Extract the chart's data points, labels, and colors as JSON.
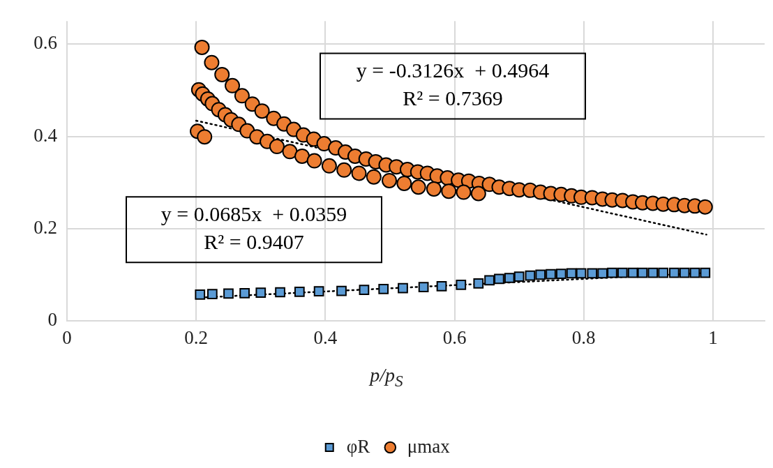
{
  "chart_data": {
    "type": "scatter",
    "xlabel": "p/p$_{S}$",
    "xlim": [
      0,
      1.08
    ],
    "xticks": [
      0,
      0.2,
      0.4,
      0.6,
      0.8,
      1
    ],
    "ylim": [
      0,
      0.65
    ],
    "yticks": [
      0,
      0.2,
      0.4,
      0.6
    ],
    "grid": true,
    "legend": "bottom",
    "series": [
      {
        "name": "φR",
        "type": "scatter",
        "marker": "square",
        "color": "#5b9bd5",
        "x": [
          0.206,
          0.225,
          0.25,
          0.275,
          0.3,
          0.33,
          0.36,
          0.39,
          0.425,
          0.46,
          0.49,
          0.52,
          0.552,
          0.58,
          0.61,
          0.637,
          0.654,
          0.669,
          0.685,
          0.7,
          0.717,
          0.733,
          0.749,
          0.765,
          0.781,
          0.796,
          0.813,
          0.829,
          0.844,
          0.86,
          0.876,
          0.891,
          0.907,
          0.923,
          0.94,
          0.956,
          0.972,
          0.988
        ],
        "values": [
          0.057,
          0.058,
          0.059,
          0.06,
          0.061,
          0.062,
          0.063,
          0.064,
          0.065,
          0.067,
          0.069,
          0.071,
          0.073,
          0.075,
          0.078,
          0.081,
          0.088,
          0.091,
          0.093,
          0.096,
          0.098,
          0.1,
          0.101,
          0.102,
          0.103,
          0.103,
          0.103,
          0.103,
          0.104,
          0.104,
          0.104,
          0.104,
          0.104,
          0.104,
          0.104,
          0.104,
          0.104,
          0.104
        ]
      },
      {
        "name": "μmax",
        "type": "scatter",
        "marker": "circle",
        "color": "#ed7d31",
        "x": [
          0.209,
          0.224,
          0.24,
          0.256,
          0.271,
          0.287,
          0.302,
          0.32,
          0.336,
          0.351,
          0.366,
          0.382,
          0.398,
          0.416,
          0.431,
          0.446,
          0.463,
          0.478,
          0.494,
          0.51,
          0.527,
          0.543,
          0.558,
          0.573,
          0.589,
          0.606,
          0.622,
          0.638,
          0.654,
          0.669,
          0.685,
          0.7,
          0.717,
          0.733,
          0.749,
          0.765,
          0.781,
          0.796,
          0.813,
          0.829,
          0.844,
          0.86,
          0.876,
          0.891,
          0.907,
          0.923,
          0.94,
          0.956,
          0.972,
          0.988,
          0.204,
          0.21,
          0.218,
          0.225,
          0.235,
          0.245,
          0.254,
          0.266,
          0.279,
          0.294,
          0.31,
          0.325,
          0.345,
          0.364,
          0.383,
          0.406,
          0.429,
          0.452,
          0.475,
          0.499,
          0.522,
          0.544,
          0.568,
          0.591,
          0.614,
          0.637,
          0.202,
          0.213
        ],
        "values": [
          0.593,
          0.56,
          0.534,
          0.51,
          0.488,
          0.47,
          0.455,
          0.439,
          0.427,
          0.415,
          0.403,
          0.394,
          0.384,
          0.375,
          0.366,
          0.357,
          0.351,
          0.345,
          0.338,
          0.334,
          0.328,
          0.323,
          0.32,
          0.314,
          0.31,
          0.305,
          0.303,
          0.298,
          0.296,
          0.29,
          0.287,
          0.284,
          0.283,
          0.279,
          0.276,
          0.274,
          0.271,
          0.268,
          0.267,
          0.264,
          0.262,
          0.261,
          0.258,
          0.256,
          0.255,
          0.253,
          0.252,
          0.25,
          0.249,
          0.247,
          0.501,
          0.492,
          0.481,
          0.471,
          0.458,
          0.447,
          0.436,
          0.426,
          0.412,
          0.399,
          0.389,
          0.378,
          0.367,
          0.357,
          0.347,
          0.336,
          0.327,
          0.32,
          0.312,
          0.304,
          0.298,
          0.29,
          0.286,
          0.281,
          0.279,
          0.276,
          0.411,
          0.399
        ]
      },
      {
        "type": "line",
        "line_style": "dotted",
        "marker": "none",
        "color": "#000000",
        "x": [
          0.2,
          0.99
        ],
        "values": [
          0.434,
          0.187
        ]
      },
      {
        "type": "line",
        "line_style": "dotted",
        "marker": "none",
        "color": "#000000",
        "x": [
          0.2,
          0.99
        ],
        "values": [
          0.05,
          0.104
        ]
      }
    ],
    "annotations": [
      "y = -0.3126x  + 0.4964\nR² = 0.7369",
      "y = 0.0685x  + 0.0359\nR² = 0.9407"
    ]
  }
}
